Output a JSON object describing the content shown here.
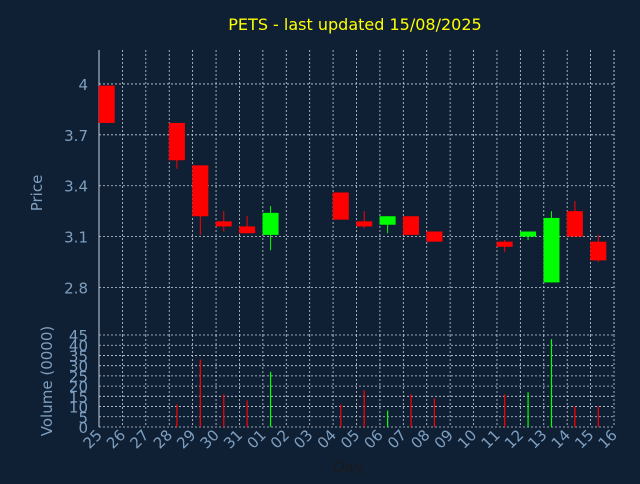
{
  "chart_data": {
    "type": "candlestick",
    "title": "PETS - last updated 15/08/2025",
    "colors": {
      "background": "#0f2035",
      "title": "#ffff00",
      "axis_text": "#7f9fbf",
      "tick_text": "#c0c8d8",
      "grid": "#c8d0dc",
      "up": "#00ff00",
      "down": "#ff0000"
    },
    "price_panel": {
      "ylabel": "Price",
      "ylim": [
        2.52,
        4.2
      ],
      "yticks": [
        2.8,
        3.1,
        3.4,
        3.7,
        4
      ],
      "ytick_labels": [
        "2.8",
        "3.1",
        "3.4",
        "3.7",
        "4"
      ],
      "grid": true
    },
    "volume_panel": {
      "ylabel": "Volume (0000)",
      "ylim": [
        0,
        45
      ],
      "yticks": [
        0,
        5,
        10,
        15,
        20,
        25,
        30,
        35,
        40,
        45
      ],
      "ytick_labels": [
        "0",
        "5",
        "10",
        "15",
        "20",
        "25",
        "30",
        "35",
        "40",
        "45"
      ],
      "grid": true
    },
    "xlabel": "Day",
    "x_tick_labels": [
      "25",
      "26",
      "27",
      "28",
      "29",
      "30",
      "31",
      "01",
      "02",
      "03",
      "04",
      "05",
      "06",
      "07",
      "08",
      "09",
      "10",
      "11",
      "12",
      "13",
      "14",
      "15",
      "16"
    ],
    "candles": [
      {
        "x": 0,
        "open": 3.99,
        "close": 3.77,
        "high": 3.99,
        "low": 3.77,
        "volume": 0
      },
      {
        "x": 3,
        "open": 3.77,
        "close": 3.55,
        "high": 3.77,
        "low": 3.5,
        "volume": 11
      },
      {
        "x": 4,
        "open": 3.52,
        "close": 3.22,
        "high": 3.52,
        "low": 3.11,
        "volume": 33
      },
      {
        "x": 5,
        "open": 3.19,
        "close": 3.16,
        "high": 3.25,
        "low": 3.13,
        "volume": 16
      },
      {
        "x": 6,
        "open": 3.16,
        "close": 3.12,
        "high": 3.22,
        "low": 3.12,
        "volume": 13
      },
      {
        "x": 7,
        "open": 3.11,
        "close": 3.24,
        "high": 3.28,
        "low": 3.02,
        "volume": 27
      },
      {
        "x": 10,
        "open": 3.36,
        "close": 3.2,
        "high": 3.36,
        "low": 3.2,
        "volume": 11
      },
      {
        "x": 11,
        "open": 3.19,
        "close": 3.16,
        "high": 3.25,
        "low": 3.15,
        "volume": 18
      },
      {
        "x": 12,
        "open": 3.17,
        "close": 3.22,
        "high": 3.22,
        "low": 3.12,
        "volume": 8
      },
      {
        "x": 13,
        "open": 3.22,
        "close": 3.11,
        "high": 3.22,
        "low": 3.11,
        "volume": 16
      },
      {
        "x": 14,
        "open": 3.13,
        "close": 3.07,
        "high": 3.13,
        "low": 3.07,
        "volume": 14
      },
      {
        "x": 17,
        "open": 3.07,
        "close": 3.04,
        "high": 3.08,
        "low": 3.01,
        "volume": 16
      },
      {
        "x": 18,
        "open": 3.1,
        "close": 3.13,
        "high": 3.13,
        "low": 3.08,
        "volume": 17
      },
      {
        "x": 19,
        "open": 2.83,
        "close": 3.21,
        "high": 3.25,
        "low": 2.83,
        "volume": 43
      },
      {
        "x": 20,
        "open": 3.25,
        "close": 3.1,
        "high": 3.31,
        "low": 3.1,
        "volume": 10
      },
      {
        "x": 21,
        "open": 3.07,
        "close": 2.96,
        "high": 3.11,
        "low": 2.95,
        "volume": 10
      }
    ]
  }
}
